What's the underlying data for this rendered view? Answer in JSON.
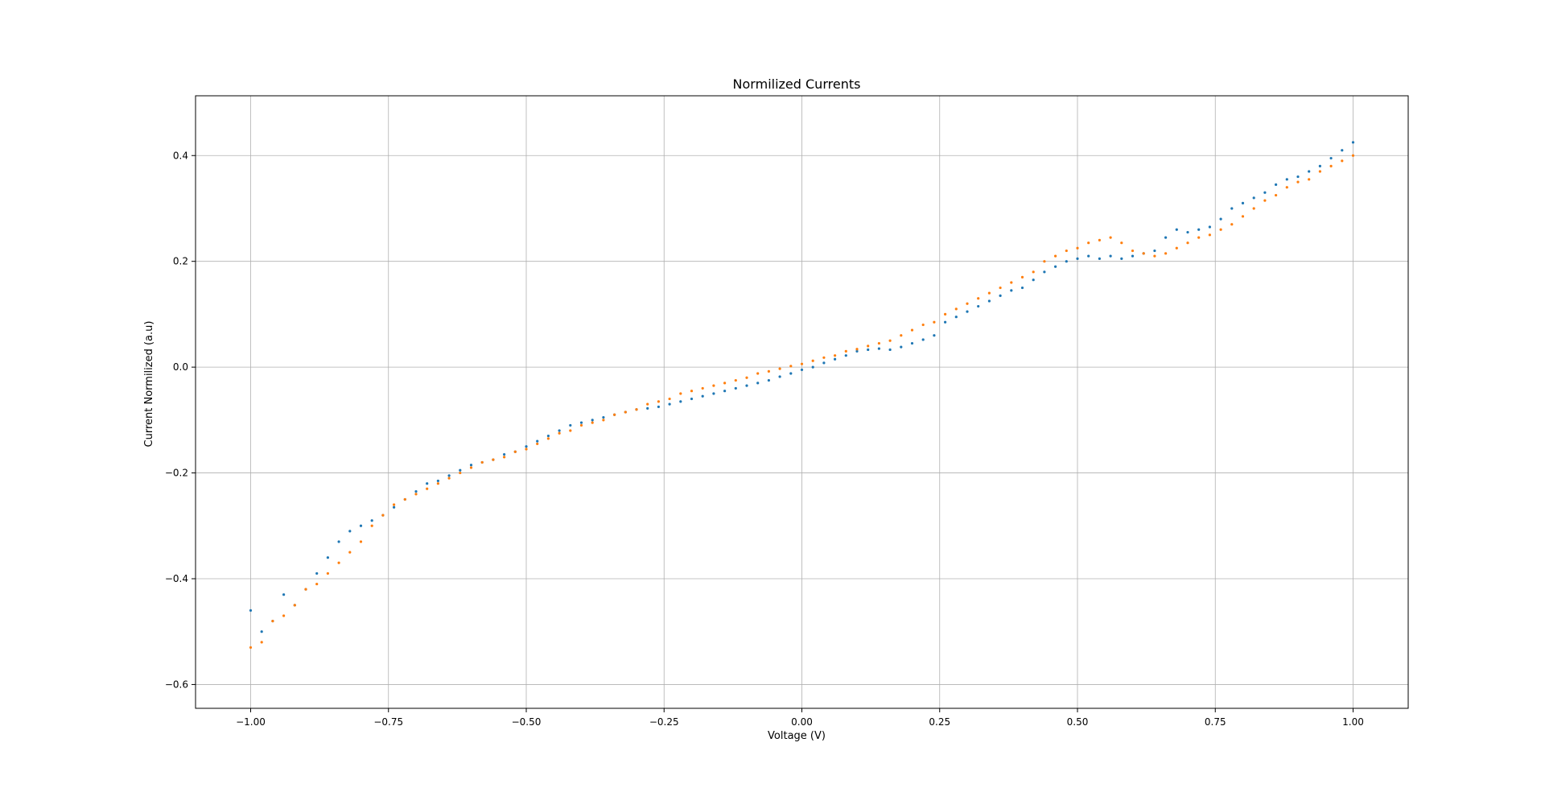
{
  "chart_data": {
    "type": "scatter",
    "title": "Normilized Currents",
    "xlabel": "Voltage (V)",
    "ylabel": "Current Normilized (a.u)",
    "xlim": [
      -1.1,
      1.1
    ],
    "ylim": [
      -0.645,
      0.513
    ],
    "xticks": [
      -1.0,
      -0.75,
      -0.5,
      -0.25,
      0.0,
      0.25,
      0.5,
      0.75,
      1.0
    ],
    "xtick_labels": [
      "−1.00",
      "−0.75",
      "−0.50",
      "−0.25",
      "0.00",
      "0.25",
      "0.50",
      "0.75",
      "1.00"
    ],
    "yticks": [
      -0.6,
      -0.4,
      -0.2,
      0.0,
      0.2,
      0.4
    ],
    "ytick_labels": [
      "−0.6",
      "−0.4",
      "−0.2",
      "0.0",
      "0.2",
      "0.4"
    ],
    "grid": true,
    "series": [
      {
        "color": "#1f77b4",
        "x": [
          -1.0,
          -0.98,
          -0.96,
          -0.94,
          -0.92,
          -0.9,
          -0.88,
          -0.86,
          -0.84,
          -0.82,
          -0.8,
          -0.78,
          -0.76,
          -0.74,
          -0.72,
          -0.7,
          -0.68,
          -0.66,
          -0.64,
          -0.62,
          -0.6,
          -0.58,
          -0.56,
          -0.54,
          -0.52,
          -0.5,
          -0.48,
          -0.46,
          -0.44,
          -0.42,
          -0.4,
          -0.38,
          -0.36,
          -0.34,
          -0.32,
          -0.3,
          -0.28,
          -0.26,
          -0.24,
          -0.22,
          -0.2,
          -0.18,
          -0.16,
          -0.14,
          -0.12,
          -0.1,
          -0.08,
          -0.06,
          -0.04,
          -0.02,
          0.0,
          0.02,
          0.04,
          0.06,
          0.08,
          0.1,
          0.12,
          0.14,
          0.16,
          0.18,
          0.2,
          0.22,
          0.24,
          0.26,
          0.28,
          0.3,
          0.32,
          0.34,
          0.36,
          0.38,
          0.4,
          0.42,
          0.44,
          0.46,
          0.48,
          0.5,
          0.52,
          0.54,
          0.56,
          0.58,
          0.6,
          0.62,
          0.64,
          0.66,
          0.68,
          0.7,
          0.72,
          0.74,
          0.76,
          0.78,
          0.8,
          0.82,
          0.84,
          0.86,
          0.88,
          0.9,
          0.92,
          0.94,
          0.96,
          0.98,
          1.0
        ],
        "y": [
          -0.46,
          -0.5,
          -0.48,
          -0.43,
          -0.45,
          -0.42,
          -0.39,
          -0.36,
          -0.33,
          -0.31,
          -0.3,
          -0.29,
          -0.28,
          -0.265,
          -0.25,
          -0.235,
          -0.22,
          -0.215,
          -0.205,
          -0.195,
          -0.185,
          -0.18,
          -0.175,
          -0.165,
          -0.16,
          -0.15,
          -0.14,
          -0.13,
          -0.12,
          -0.11,
          -0.105,
          -0.1,
          -0.095,
          -0.09,
          -0.085,
          -0.08,
          -0.078,
          -0.075,
          -0.07,
          -0.065,
          -0.06,
          -0.055,
          -0.05,
          -0.045,
          -0.04,
          -0.035,
          -0.03,
          -0.025,
          -0.018,
          -0.012,
          -0.005,
          0.0,
          0.008,
          0.015,
          0.022,
          0.03,
          0.033,
          0.035,
          0.033,
          0.038,
          0.045,
          0.052,
          0.06,
          0.085,
          0.095,
          0.105,
          0.115,
          0.125,
          0.135,
          0.145,
          0.15,
          0.165,
          0.18,
          0.19,
          0.2,
          0.205,
          0.21,
          0.205,
          0.21,
          0.205,
          0.21,
          0.215,
          0.22,
          0.245,
          0.26,
          0.255,
          0.26,
          0.265,
          0.28,
          0.3,
          0.31,
          0.32,
          0.33,
          0.345,
          0.355,
          0.36,
          0.37,
          0.38,
          0.395,
          0.41,
          0.425
        ]
      },
      {
        "color": "#ff7f0e",
        "x": [
          -1.0,
          -0.98,
          -0.96,
          -0.94,
          -0.92,
          -0.9,
          -0.88,
          -0.86,
          -0.84,
          -0.82,
          -0.8,
          -0.78,
          -0.76,
          -0.74,
          -0.72,
          -0.7,
          -0.68,
          -0.66,
          -0.64,
          -0.62,
          -0.6,
          -0.58,
          -0.56,
          -0.54,
          -0.52,
          -0.5,
          -0.48,
          -0.46,
          -0.44,
          -0.42,
          -0.4,
          -0.38,
          -0.36,
          -0.34,
          -0.32,
          -0.3,
          -0.28,
          -0.26,
          -0.24,
          -0.22,
          -0.2,
          -0.18,
          -0.16,
          -0.14,
          -0.12,
          -0.1,
          -0.08,
          -0.06,
          -0.04,
          -0.02,
          0.0,
          0.02,
          0.04,
          0.06,
          0.08,
          0.1,
          0.12,
          0.14,
          0.16,
          0.18,
          0.2,
          0.22,
          0.24,
          0.26,
          0.28,
          0.3,
          0.32,
          0.34,
          0.36,
          0.38,
          0.4,
          0.42,
          0.44,
          0.46,
          0.48,
          0.5,
          0.52,
          0.54,
          0.56,
          0.58,
          0.6,
          0.62,
          0.64,
          0.66,
          0.68,
          0.7,
          0.72,
          0.74,
          0.76,
          0.78,
          0.8,
          0.82,
          0.84,
          0.86,
          0.88,
          0.9,
          0.92,
          0.94,
          0.96,
          0.98,
          1.0
        ],
        "y": [
          -0.53,
          -0.52,
          -0.48,
          -0.47,
          -0.45,
          -0.42,
          -0.41,
          -0.39,
          -0.37,
          -0.35,
          -0.33,
          -0.3,
          -0.28,
          -0.26,
          -0.25,
          -0.24,
          -0.23,
          -0.22,
          -0.21,
          -0.2,
          -0.19,
          -0.18,
          -0.175,
          -0.17,
          -0.16,
          -0.155,
          -0.145,
          -0.135,
          -0.125,
          -0.12,
          -0.11,
          -0.105,
          -0.1,
          -0.09,
          -0.085,
          -0.08,
          -0.07,
          -0.065,
          -0.06,
          -0.05,
          -0.045,
          -0.04,
          -0.035,
          -0.03,
          -0.025,
          -0.02,
          -0.012,
          -0.008,
          -0.003,
          0.002,
          0.006,
          0.012,
          0.018,
          0.022,
          0.03,
          0.034,
          0.04,
          0.045,
          0.05,
          0.06,
          0.07,
          0.08,
          0.085,
          0.1,
          0.11,
          0.12,
          0.13,
          0.14,
          0.15,
          0.16,
          0.17,
          0.18,
          0.2,
          0.21,
          0.22,
          0.225,
          0.235,
          0.24,
          0.245,
          0.235,
          0.22,
          0.215,
          0.21,
          0.215,
          0.225,
          0.235,
          0.245,
          0.25,
          0.26,
          0.27,
          0.285,
          0.3,
          0.315,
          0.325,
          0.34,
          0.35,
          0.355,
          0.37,
          0.38,
          0.39,
          0.4
        ]
      }
    ]
  }
}
